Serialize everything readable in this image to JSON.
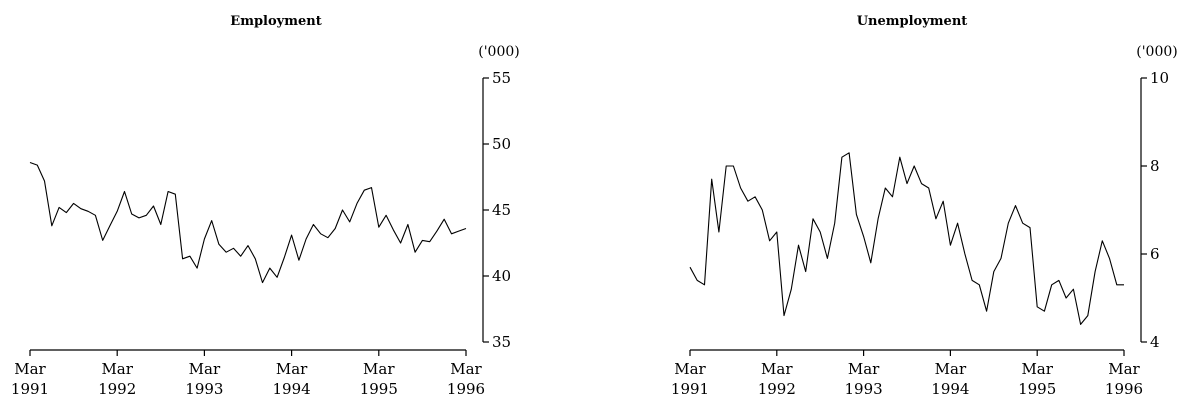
{
  "chart_data": [
    {
      "type": "line",
      "title": "Employment",
      "unit_label": "('000)",
      "ylim": [
        35,
        55
      ],
      "yticks": [
        35,
        40,
        45,
        50,
        55
      ],
      "xticks": [
        {
          "month": "Mar",
          "year": "1991"
        },
        {
          "month": "Mar",
          "year": "1992"
        },
        {
          "month": "Mar",
          "year": "1993"
        },
        {
          "month": "Mar",
          "year": "1994"
        },
        {
          "month": "Mar",
          "year": "1995"
        },
        {
          "month": "Mar",
          "year": "1996"
        }
      ],
      "x_start": "1991-03",
      "x_end": "1996-03",
      "series": [
        {
          "x": [
            "1991-03",
            "1991-04",
            "1991-05",
            "1991-06",
            "1991-07",
            "1991-08",
            "1991-09",
            "1991-10",
            "1991-11",
            "1991-12",
            "1992-01",
            "1992-02",
            "1992-03",
            "1992-04",
            "1992-05",
            "1992-06",
            "1992-07",
            "1992-08",
            "1992-09",
            "1992-10",
            "1992-11",
            "1992-12",
            "1993-01",
            "1993-02",
            "1993-03",
            "1993-04",
            "1993-05",
            "1993-06",
            "1993-07",
            "1993-08",
            "1993-09",
            "1993-10",
            "1993-11",
            "1993-12",
            "1994-01",
            "1994-02",
            "1994-03",
            "1994-04",
            "1994-05",
            "1994-06",
            "1994-07",
            "1994-08",
            "1994-09",
            "1994-10",
            "1994-11",
            "1994-12",
            "1995-01",
            "1995-02",
            "1995-03",
            "1995-04",
            "1995-05",
            "1995-06",
            "1995-07",
            "1995-08",
            "1995-09",
            "1995-10",
            "1995-11",
            "1995-12",
            "1996-01",
            "1996-02",
            "1996-03"
          ],
          "values": [
            48.6,
            48.4,
            47.2,
            43.8,
            45.2,
            44.8,
            45.5,
            45.1,
            44.9,
            44.6,
            42.7,
            43.8,
            44.9,
            46.4,
            44.7,
            44.4,
            44.6,
            45.3,
            43.9,
            46.4,
            46.2,
            41.3,
            41.5,
            40.6,
            42.8,
            44.2,
            42.4,
            41.8,
            42.1,
            41.5,
            42.3,
            41.3,
            39.5,
            40.6,
            39.9,
            41.4,
            43.1,
            41.2,
            42.8,
            43.9,
            43.2,
            42.9,
            43.6,
            45.0,
            44.1,
            45.5,
            46.5,
            46.7,
            43.7,
            44.6,
            43.5,
            42.5,
            43.9,
            41.8,
            42.7,
            42.6,
            43.4,
            44.3,
            43.2,
            43.4,
            43.6
          ]
        }
      ]
    },
    {
      "type": "line",
      "title": "Unemployment",
      "unit_label": "('000)",
      "ylim": [
        4,
        10
      ],
      "yticks": [
        4,
        6,
        8,
        10
      ],
      "xticks": [
        {
          "month": "Mar",
          "year": "1991"
        },
        {
          "month": "Mar",
          "year": "1992"
        },
        {
          "month": "Mar",
          "year": "1993"
        },
        {
          "month": "Mar",
          "year": "1994"
        },
        {
          "month": "Mar",
          "year": "1995"
        },
        {
          "month": "Mar",
          "year": "1996"
        }
      ],
      "x_start": "1991-03",
      "x_end": "1996-03",
      "series": [
        {
          "x": [
            "1991-03",
            "1991-04",
            "1991-05",
            "1991-06",
            "1991-07",
            "1991-08",
            "1991-09",
            "1991-10",
            "1991-11",
            "1991-12",
            "1992-01",
            "1992-02",
            "1992-03",
            "1992-04",
            "1992-05",
            "1992-06",
            "1992-07",
            "1992-08",
            "1992-09",
            "1992-10",
            "1992-11",
            "1992-12",
            "1993-01",
            "1993-02",
            "1993-03",
            "1993-04",
            "1993-05",
            "1993-06",
            "1993-07",
            "1993-08",
            "1993-09",
            "1993-10",
            "1993-11",
            "1993-12",
            "1994-01",
            "1994-02",
            "1994-03",
            "1994-04",
            "1994-05",
            "1994-06",
            "1994-07",
            "1994-08",
            "1994-09",
            "1994-10",
            "1994-11",
            "1994-12",
            "1995-01",
            "1995-02",
            "1995-03",
            "1995-04",
            "1995-05",
            "1995-06",
            "1995-07",
            "1995-08",
            "1995-09",
            "1995-10",
            "1995-11",
            "1995-12",
            "1996-01",
            "1996-02",
            "1996-03"
          ],
          "values": [
            5.7,
            5.4,
            5.3,
            7.7,
            6.5,
            8.0,
            8.0,
            7.5,
            7.2,
            7.3,
            7.0,
            6.3,
            6.5,
            4.6,
            5.2,
            6.2,
            5.6,
            6.8,
            6.5,
            5.9,
            6.7,
            8.2,
            8.3,
            6.9,
            6.4,
            5.8,
            6.8,
            7.5,
            7.3,
            8.2,
            7.6,
            8.0,
            7.6,
            7.5,
            6.8,
            7.2,
            6.2,
            6.7,
            6.0,
            5.4,
            5.3,
            4.7,
            5.6,
            5.9,
            6.7,
            7.1,
            6.7,
            6.6,
            4.8,
            4.7,
            5.3,
            5.4,
            5.0,
            5.2,
            4.4,
            4.6,
            5.6,
            6.3,
            5.9,
            5.3,
            5.3
          ]
        }
      ]
    }
  ]
}
